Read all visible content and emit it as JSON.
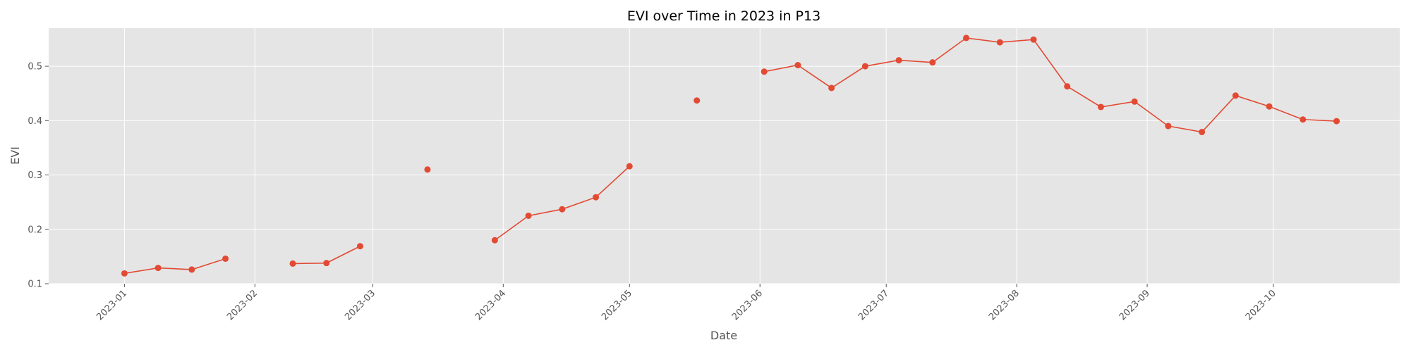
{
  "chart_data": {
    "type": "line",
    "title": "EVI over Time in 2023 in P13",
    "xlabel": "Date",
    "ylabel": "EVI",
    "xlim": [
      "2022-12-14",
      "2023-10-31"
    ],
    "ylim": [
      0.1,
      0.57
    ],
    "x_ticks": [
      "2023-01",
      "2023-02",
      "2023-03",
      "2023-04",
      "2023-05",
      "2023-06",
      "2023-07",
      "2023-08",
      "2023-09",
      "2023-10"
    ],
    "y_ticks": [
      "0.1",
      "0.2",
      "0.3",
      "0.4",
      "0.5"
    ],
    "grid": true,
    "legend": "none",
    "colors": {
      "series": "#E24A33",
      "plot_bg": "#E5E5E5",
      "grid": "#FFFFFF"
    },
    "series": [
      {
        "points": [
          {
            "x": "2023-01-01",
            "y": 0.119
          },
          {
            "x": "2023-01-09",
            "y": 0.129
          },
          {
            "x": "2023-01-17",
            "y": 0.126
          },
          {
            "x": "2023-01-25",
            "y": 0.146
          },
          {
            "x": "2023-02-02",
            "y": null
          },
          {
            "x": "2023-02-10",
            "y": 0.137
          },
          {
            "x": "2023-02-18",
            "y": 0.138
          },
          {
            "x": "2023-02-26",
            "y": 0.169
          },
          {
            "x": "2023-03-06",
            "y": null
          },
          {
            "x": "2023-03-14",
            "y": 0.31
          },
          {
            "x": "2023-03-22",
            "y": null
          },
          {
            "x": "2023-03-30",
            "y": 0.18
          },
          {
            "x": "2023-04-07",
            "y": 0.225
          },
          {
            "x": "2023-04-15",
            "y": 0.237
          },
          {
            "x": "2023-04-23",
            "y": 0.259
          },
          {
            "x": "2023-05-01",
            "y": 0.316
          },
          {
            "x": "2023-05-09",
            "y": null
          },
          {
            "x": "2023-05-17",
            "y": 0.437
          },
          {
            "x": "2023-05-25",
            "y": null
          },
          {
            "x": "2023-06-02",
            "y": 0.49
          },
          {
            "x": "2023-06-10",
            "y": 0.502
          },
          {
            "x": "2023-06-18",
            "y": 0.46
          },
          {
            "x": "2023-06-26",
            "y": 0.5
          },
          {
            "x": "2023-07-04",
            "y": 0.511
          },
          {
            "x": "2023-07-12",
            "y": 0.507
          },
          {
            "x": "2023-07-20",
            "y": 0.552
          },
          {
            "x": "2023-07-28",
            "y": 0.544
          },
          {
            "x": "2023-08-05",
            "y": 0.549
          },
          {
            "x": "2023-08-13",
            "y": 0.463
          },
          {
            "x": "2023-08-21",
            "y": 0.425
          },
          {
            "x": "2023-08-29",
            "y": 0.435
          },
          {
            "x": "2023-09-06",
            "y": 0.39
          },
          {
            "x": "2023-09-14",
            "y": 0.379
          },
          {
            "x": "2023-09-22",
            "y": 0.446
          },
          {
            "x": "2023-09-30",
            "y": 0.426
          },
          {
            "x": "2023-10-08",
            "y": 0.402
          },
          {
            "x": "2023-10-16",
            "y": 0.399
          }
        ]
      }
    ]
  }
}
